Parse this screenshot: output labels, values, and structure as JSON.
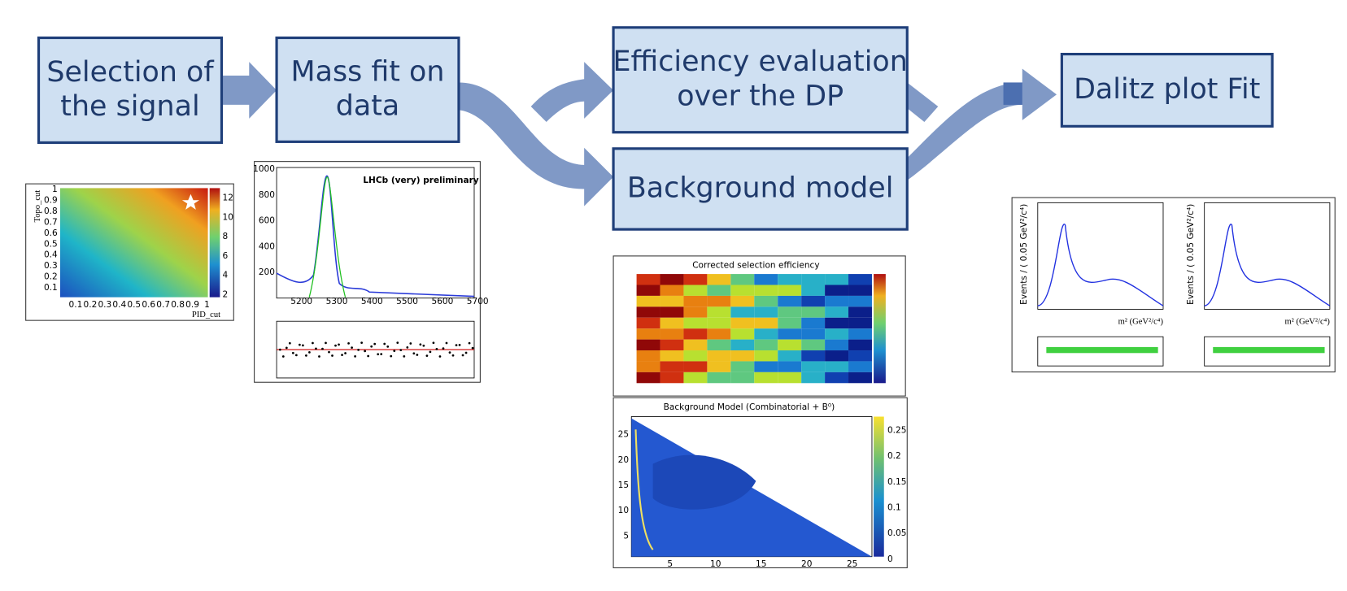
{
  "boxes": [
    {
      "lines": [
        "Selection of",
        "the signal"
      ]
    },
    {
      "lines": [
        "Mass fit on",
        "data"
      ]
    },
    {
      "lines": [
        "Efficiency evaluation",
        "over the DP"
      ]
    },
    {
      "lines": [
        "Background model"
      ]
    },
    {
      "lines": [
        "Dalitz plot Fit"
      ]
    }
  ],
  "plots": {
    "cut_scan": {
      "y_label": "Topo_cut",
      "x_label": "PID_cut",
      "yticks": [
        "0.1",
        "0.2",
        "0.3",
        "0.4",
        "0.5",
        "0.6",
        "0.7",
        "0.8",
        "0.9",
        "1"
      ],
      "xticks": [
        "0.1",
        "0.2",
        "0.3",
        "0.4",
        "0.5",
        "0.6",
        "0.7",
        "0.8",
        "0.9",
        "1"
      ],
      "colorbar": [
        "2",
        "4",
        "6",
        "8",
        "10",
        "12"
      ]
    },
    "mass_fit": {
      "title": "LHCb (very) preliminary",
      "xticks": [
        "5200",
        "5300",
        "5400",
        "5500",
        "5600",
        "5700"
      ],
      "yticks": [
        "200",
        "400",
        "600",
        "800",
        "1000"
      ]
    },
    "efficiency": {
      "title": "Corrected selection efficiency"
    },
    "background": {
      "title": "Background Model (Combinatorial + B⁰)",
      "yticks": [
        "5",
        "10",
        "15",
        "20",
        "25"
      ],
      "xticks": [
        "5",
        "10",
        "15",
        "20",
        "25"
      ],
      "colorbar": [
        "0",
        "0.05",
        "0.1",
        "0.15",
        "0.2",
        "0.25"
      ]
    },
    "dalitz": {
      "y_label": "Events / ( 0.05 GeV²/c⁴)",
      "x_label": "m² (GeV²/c⁴)"
    }
  }
}
